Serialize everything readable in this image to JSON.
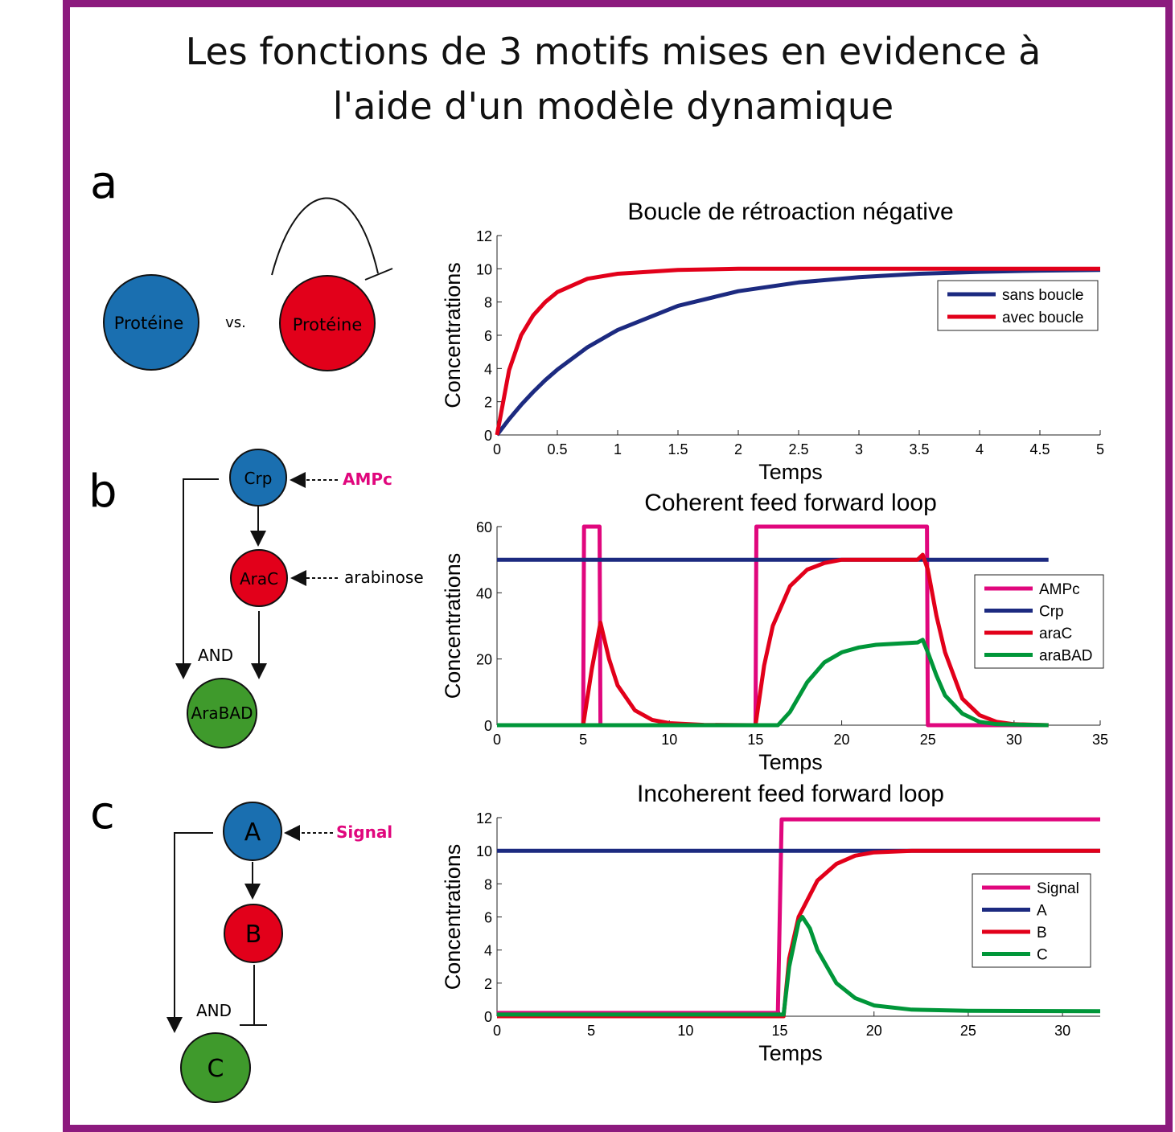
{
  "title_line1": "Les fonctions de 3 motifs mises en evidence à",
  "title_line2": "l'aide d'un modèle dynamique",
  "panels": {
    "a": {
      "letter": "a",
      "node_left": "Protéine",
      "vs": "vs.",
      "node_right": "Protéine"
    },
    "b": {
      "letter": "b",
      "crp": "Crp",
      "ampc": "AMPc",
      "arac": "AraC",
      "arabinose": "arabinose",
      "and": "AND",
      "arabad": "AraBAD"
    },
    "c": {
      "letter": "c",
      "a": "A",
      "signal": "Signal",
      "b": "B",
      "and": "AND",
      "c": "C"
    }
  },
  "colors": {
    "blue": "#1a6fb0",
    "red": "#e2001a",
    "green": "#3f9a2c",
    "magenta": "#e0077d",
    "navy": "#1c2a80",
    "line_red": "#e2001a",
    "line_green": "#009639",
    "frame": "#8c1a7e"
  },
  "chart_data": [
    {
      "type": "line",
      "title": "Boucle de rétroaction négative",
      "xlabel": "Temps",
      "ylabel": "Concentrations",
      "xlim": [
        0,
        5
      ],
      "ylim": [
        0,
        12
      ],
      "xticks": [
        0,
        0.5,
        1,
        1.5,
        2,
        2.5,
        3,
        3.5,
        4,
        4.5,
        5
      ],
      "yticks": [
        0,
        2,
        4,
        6,
        8,
        10,
        12
      ],
      "legend_position": "top-right",
      "series": [
        {
          "name": "sans boucle",
          "color": "#1c2a80",
          "x": [
            0,
            0.1,
            0.2,
            0.3,
            0.4,
            0.5,
            0.75,
            1,
            1.5,
            2,
            2.5,
            3,
            3.5,
            4,
            4.5,
            5
          ],
          "y": [
            0,
            0.95,
            1.81,
            2.59,
            3.3,
            3.93,
            5.28,
            6.32,
            7.77,
            8.65,
            9.18,
            9.5,
            9.7,
            9.82,
            9.89,
            9.93
          ]
        },
        {
          "name": "avec boucle",
          "color": "#e2001a",
          "x": [
            0,
            0.1,
            0.2,
            0.3,
            0.4,
            0.5,
            0.75,
            1,
            1.5,
            2,
            2.5,
            3,
            3.5,
            4,
            4.5,
            5
          ],
          "y": [
            0,
            3.9,
            6.0,
            7.2,
            8.0,
            8.6,
            9.4,
            9.7,
            9.93,
            10,
            10,
            10,
            10,
            10,
            10,
            10
          ]
        }
      ]
    },
    {
      "type": "line",
      "title": "Coherent feed forward loop",
      "xlabel": "Temps",
      "ylabel": "Concentrations",
      "xlim": [
        0,
        35
      ],
      "ylim": [
        0,
        60
      ],
      "xticks": [
        0,
        5,
        10,
        15,
        20,
        25,
        30,
        35
      ],
      "yticks": [
        0,
        20,
        40,
        60
      ],
      "legend_position": "right",
      "series": [
        {
          "name": "AMPc",
          "color": "#e0077d",
          "x": [
            0,
            5,
            5.05,
            5.95,
            6,
            15,
            15.05,
            24.95,
            25,
            32
          ],
          "y": [
            0,
            0,
            60,
            60,
            0,
            0,
            60,
            60,
            0,
            0
          ]
        },
        {
          "name": "Crp",
          "color": "#1c2a80",
          "x": [
            0,
            32
          ],
          "y": [
            50,
            50
          ]
        },
        {
          "name": "araC",
          "color": "#e2001a",
          "x": [
            0,
            5,
            5.5,
            6,
            6.5,
            7,
            8,
            9,
            10,
            12,
            15,
            15.5,
            16,
            17,
            18,
            19,
            20,
            24.4,
            24.7,
            25,
            25.5,
            26,
            27,
            28,
            29,
            30,
            32
          ],
          "y": [
            0,
            0,
            17,
            31,
            20,
            12,
            4.5,
            1.6,
            0.6,
            0.1,
            0,
            18,
            30,
            42,
            47,
            49,
            50,
            50,
            51.5,
            47,
            33,
            22,
            8,
            3,
            1,
            0.3,
            0
          ]
        },
        {
          "name": "araBAD",
          "color": "#009639",
          "x": [
            0,
            16.3,
            17,
            18,
            19,
            20,
            21,
            22,
            24.4,
            24.7,
            25,
            25.5,
            26,
            27,
            28,
            29,
            32
          ],
          "y": [
            0,
            0,
            4,
            13,
            19,
            22,
            23.5,
            24.3,
            25,
            25.8,
            22,
            15,
            9,
            3.5,
            1,
            0.3,
            0
          ]
        }
      ]
    },
    {
      "type": "line",
      "title": "Incoherent feed forward loop",
      "xlabel": "Temps",
      "ylabel": "Concentrations",
      "xlim": [
        0,
        32
      ],
      "ylim": [
        0,
        12
      ],
      "xticks": [
        0,
        5,
        10,
        15,
        20,
        25,
        30
      ],
      "yticks": [
        0,
        2,
        4,
        6,
        8,
        10,
        12
      ],
      "legend_position": "right",
      "series": [
        {
          "name": "Signal",
          "color": "#e0077d",
          "x": [
            0,
            14.9,
            15.1,
            32
          ],
          "y": [
            0.2,
            0.2,
            11.9,
            11.9
          ]
        },
        {
          "name": "A",
          "color": "#1c2a80",
          "x": [
            0,
            32
          ],
          "y": [
            10,
            10
          ]
        },
        {
          "name": "B",
          "color": "#e2001a",
          "x": [
            0,
            15.2,
            15.5,
            16,
            17,
            18,
            19,
            20,
            22,
            32
          ],
          "y": [
            0,
            0,
            3.5,
            6,
            8.2,
            9.2,
            9.7,
            9.9,
            10,
            10
          ]
        },
        {
          "name": "C",
          "color": "#009639",
          "x": [
            0,
            15.2,
            15.5,
            16,
            16.2,
            16.6,
            17,
            18,
            19,
            20,
            22,
            25,
            32
          ],
          "y": [
            0.1,
            0.1,
            3,
            5.7,
            6,
            5.3,
            4,
            2,
            1.1,
            0.65,
            0.4,
            0.33,
            0.3
          ]
        }
      ]
    }
  ]
}
